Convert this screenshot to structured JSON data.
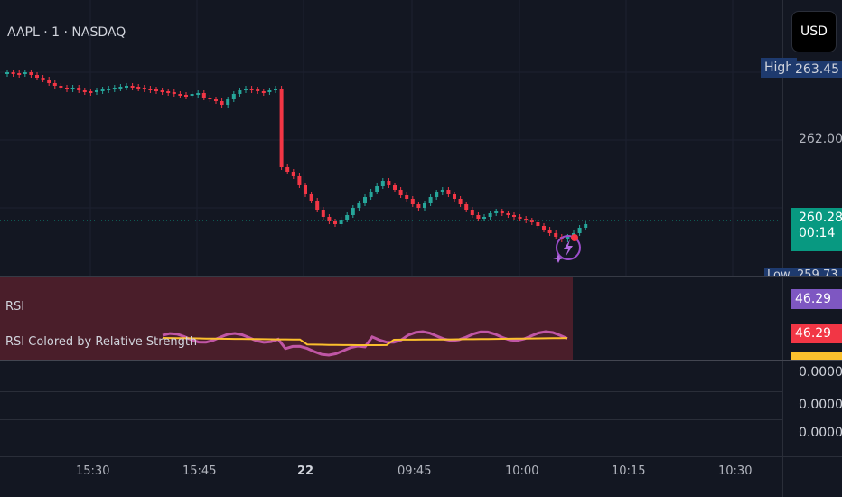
{
  "header": {
    "symbol": "AAPL · 1 · NASDAQ",
    "currency_button": "USD"
  },
  "price_axis": {
    "high_label": "High",
    "high_value": "263.45",
    "level_262": "262.00",
    "current_price": "260.28",
    "countdown": "00:14",
    "low_label": "Low",
    "low_value": "259.73"
  },
  "rsi_pane": {
    "title": "RSI",
    "subtitle": "RSI Colored by Relative Strength",
    "value_1": "46.29",
    "value_2": "46.29"
  },
  "empty_panes": [
    "0.0000",
    "0.0000",
    "0.0000"
  ],
  "time_axis": [
    "15:30",
    "15:45",
    "22",
    "09:45",
    "10:00",
    "10:15",
    "10:30"
  ],
  "colors": {
    "background": "#131722",
    "up": "#26a69a",
    "down": "#f23645",
    "rsi_line": "#c056a5",
    "rsi_signal": "#fbc02d",
    "rsi_bg": "#4a1e2a",
    "high_tag": "#1e3a6e",
    "price_tag": "#089981",
    "rsi_tag_1": "#7e57c2",
    "rsi_tag_2": "#f23645"
  },
  "icons": [
    "lightning-badge-icon"
  ]
}
